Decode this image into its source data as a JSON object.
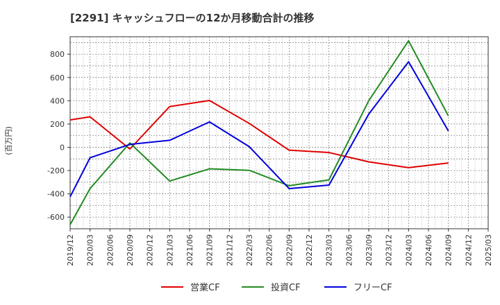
{
  "chart_data": {
    "type": "line",
    "title": "[2291]  キャッシュフローの12か月移動合計の推移",
    "ylabel": "(百万円)",
    "xlabel": "",
    "ylim": [
      -700,
      950
    ],
    "yticks": [
      800,
      600,
      400,
      200,
      0,
      -200,
      -400,
      -600
    ],
    "x_tick_labels": [
      "2019/12",
      "2020/03",
      "2020/06",
      "2020/09",
      "2020/12",
      "2021/03",
      "2021/06",
      "2021/09",
      "2021/12",
      "2022/03",
      "2022/06",
      "2022/09",
      "2022/12",
      "2023/03",
      "2023/06",
      "2023/09",
      "2023/12",
      "2024/03",
      "2024/06",
      "2024/09",
      "2024/12",
      "2025/03"
    ],
    "grid": true,
    "legend_position": "bottom",
    "series": [
      {
        "name": "営業CF",
        "color": "#e00000",
        "points": [
          {
            "x": "2019/12",
            "y": 235
          },
          {
            "x": "2020/03",
            "y": 262
          },
          {
            "x": "2020/09",
            "y": -15
          },
          {
            "x": "2021/03",
            "y": 350
          },
          {
            "x": "2021/09",
            "y": 402
          },
          {
            "x": "2022/03",
            "y": 205
          },
          {
            "x": "2022/09",
            "y": -25
          },
          {
            "x": "2023/03",
            "y": -45
          },
          {
            "x": "2023/09",
            "y": -125
          },
          {
            "x": "2024/03",
            "y": -175
          },
          {
            "x": "2024/09",
            "y": -135
          }
        ]
      },
      {
        "name": "投資CF",
        "color": "#228b22",
        "points": [
          {
            "x": "2019/12",
            "y": -665
          },
          {
            "x": "2020/03",
            "y": -355
          },
          {
            "x": "2020/09",
            "y": 38
          },
          {
            "x": "2021/03",
            "y": -290
          },
          {
            "x": "2021/09",
            "y": -185
          },
          {
            "x": "2022/03",
            "y": -198
          },
          {
            "x": "2022/09",
            "y": -330
          },
          {
            "x": "2023/03",
            "y": -280
          },
          {
            "x": "2023/09",
            "y": 400
          },
          {
            "x": "2024/03",
            "y": 915
          },
          {
            "x": "2024/09",
            "y": 270
          }
        ]
      },
      {
        "name": "フリーCF",
        "color": "#0000dd",
        "points": [
          {
            "x": "2019/12",
            "y": -425
          },
          {
            "x": "2020/03",
            "y": -90
          },
          {
            "x": "2020/09",
            "y": 25
          },
          {
            "x": "2021/03",
            "y": 60
          },
          {
            "x": "2021/09",
            "y": 218
          },
          {
            "x": "2022/03",
            "y": 5
          },
          {
            "x": "2022/09",
            "y": -355
          },
          {
            "x": "2023/03",
            "y": -325
          },
          {
            "x": "2023/09",
            "y": 285
          },
          {
            "x": "2024/03",
            "y": 735
          },
          {
            "x": "2024/09",
            "y": 140
          }
        ]
      }
    ]
  }
}
